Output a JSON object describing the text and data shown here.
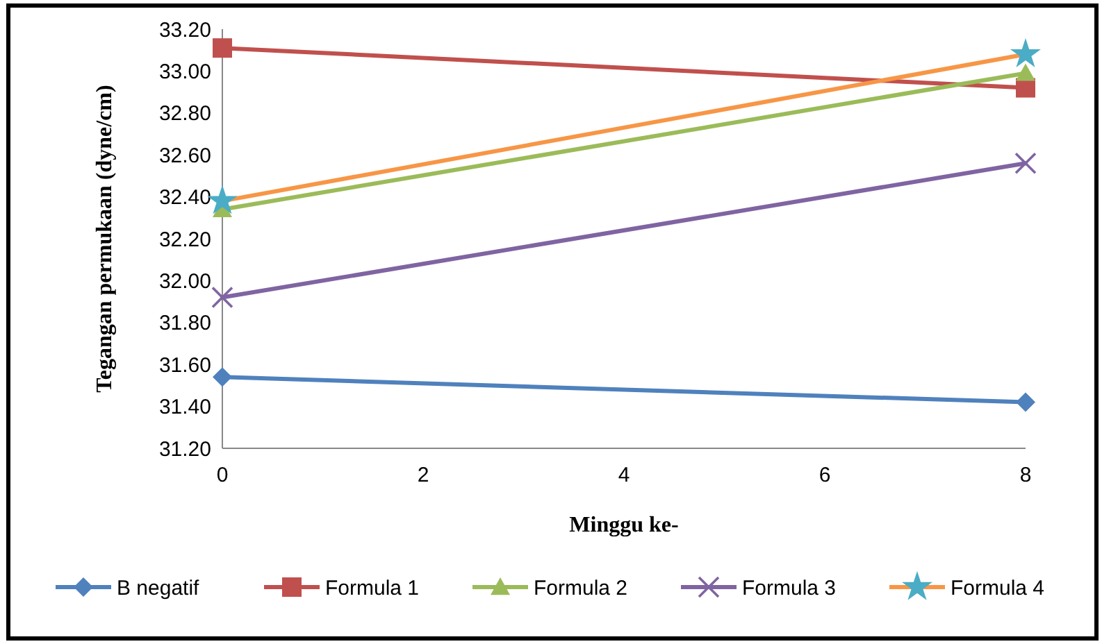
{
  "chart_data": {
    "type": "line",
    "xlabel": "Minggu ke-",
    "ylabel": "Tegangan permukaan (dyne/cm)",
    "x": [
      0,
      8
    ],
    "xlim": [
      0,
      8
    ],
    "xticks": [
      0,
      2,
      4,
      6,
      8
    ],
    "ylim": [
      31.2,
      33.2
    ],
    "yticks": [
      {
        "value": 31.2,
        "label": "31.20"
      },
      {
        "value": 31.4,
        "label": "31.40"
      },
      {
        "value": 31.6,
        "label": "31.60"
      },
      {
        "value": 31.8,
        "label": "31.80"
      },
      {
        "value": 32.0,
        "label": "32.00"
      },
      {
        "value": 32.2,
        "label": "32.20"
      },
      {
        "value": 32.4,
        "label": "32.40"
      },
      {
        "value": 32.6,
        "label": "32.60"
      },
      {
        "value": 32.8,
        "label": "32.80"
      },
      {
        "value": 33.0,
        "label": "33.00"
      },
      {
        "value": 33.2,
        "label": "33.20"
      }
    ],
    "legend": "bottom",
    "grid": false,
    "series": [
      {
        "name": "B negatif",
        "color": "#4f81bd",
        "marker": "diamond",
        "values": [
          31.54,
          31.42
        ]
      },
      {
        "name": "Formula 1",
        "color": "#c0504d",
        "marker": "square",
        "values": [
          33.11,
          32.92
        ]
      },
      {
        "name": "Formula 2",
        "color": "#9bbb59",
        "marker": "triangle",
        "values": [
          32.34,
          32.99
        ]
      },
      {
        "name": "Formula 3",
        "color": "#8064a2",
        "marker": "cross",
        "values": [
          31.92,
          32.56
        ]
      },
      {
        "name": "Formula 4",
        "color": "#f79646",
        "marker": "star",
        "values": [
          32.38,
          33.08
        ]
      }
    ]
  }
}
